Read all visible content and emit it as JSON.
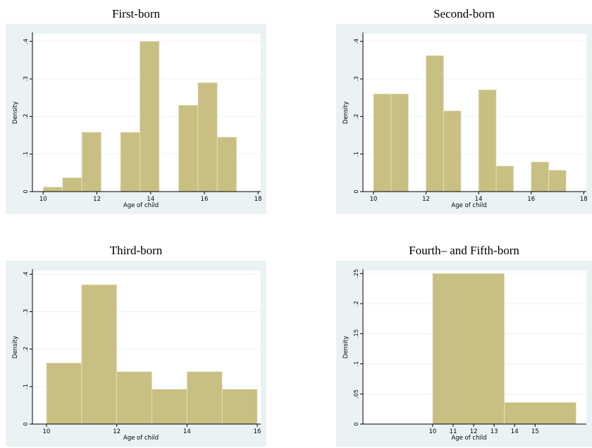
{
  "chart_data": [
    {
      "type": "bar",
      "title": "First-born",
      "xlabel": "Age of child",
      "ylabel": "Density",
      "xlim": [
        9.6,
        18.1
      ],
      "ylim": [
        0,
        0.42
      ],
      "xticks": [
        10,
        12,
        14,
        16,
        18
      ],
      "xtick_labels": [
        "10",
        "12",
        "14",
        "16",
        "18"
      ],
      "yticks": [
        0,
        0.1,
        0.2,
        0.3,
        0.4
      ],
      "ytick_labels": [
        "0",
        ".1",
        ".2",
        ".3",
        ".4"
      ],
      "bins": [
        {
          "x0": 10.0,
          "x1": 10.72,
          "value": 0.012
        },
        {
          "x0": 10.72,
          "x1": 11.44,
          "value": 0.037
        },
        {
          "x0": 11.44,
          "x1": 12.16,
          "value": 0.158
        },
        {
          "x0": 12.88,
          "x1": 13.6,
          "value": 0.158
        },
        {
          "x0": 13.6,
          "x1": 14.32,
          "value": 0.4
        },
        {
          "x0": 15.04,
          "x1": 15.76,
          "value": 0.23
        },
        {
          "x0": 15.76,
          "x1": 16.48,
          "value": 0.29
        },
        {
          "x0": 16.48,
          "x1": 17.2,
          "value": 0.145
        }
      ]
    },
    {
      "type": "bar",
      "title": "Second-born",
      "xlabel": "Age of child",
      "ylabel": "Density",
      "xlim": [
        9.6,
        18.1
      ],
      "ylim": [
        0,
        0.42
      ],
      "xticks": [
        10,
        12,
        14,
        16,
        18
      ],
      "xtick_labels": [
        "10",
        "12",
        "14",
        "16",
        "18"
      ],
      "yticks": [
        0,
        0.1,
        0.2,
        0.3,
        0.4
      ],
      "ytick_labels": [
        "0",
        ".1",
        ".2",
        ".3",
        ".4"
      ],
      "bins": [
        {
          "x0": 10.0,
          "x1": 10.67,
          "value": 0.26
        },
        {
          "x0": 10.67,
          "x1": 11.33,
          "value": 0.26
        },
        {
          "x0": 12.0,
          "x1": 12.67,
          "value": 0.362
        },
        {
          "x0": 12.67,
          "x1": 13.33,
          "value": 0.215
        },
        {
          "x0": 14.0,
          "x1": 14.67,
          "value": 0.271
        },
        {
          "x0": 14.67,
          "x1": 15.33,
          "value": 0.068
        },
        {
          "x0": 16.0,
          "x1": 16.67,
          "value": 0.079
        },
        {
          "x0": 16.67,
          "x1": 17.33,
          "value": 0.057
        }
      ]
    },
    {
      "type": "bar",
      "title": "Third-born",
      "xlabel": "Age of child",
      "ylabel": "Density",
      "xlim": [
        9.6,
        16.1
      ],
      "ylim": [
        0,
        0.41
      ],
      "xticks": [
        10,
        12,
        14,
        16
      ],
      "xtick_labels": [
        "10",
        "12",
        "14",
        "16"
      ],
      "yticks": [
        0,
        0.1,
        0.2,
        0.3,
        0.4
      ],
      "ytick_labels": [
        "0",
        ".1",
        ".2",
        ".3",
        ".4"
      ],
      "bins": [
        {
          "x0": 10,
          "x1": 11,
          "value": 0.163
        },
        {
          "x0": 11,
          "x1": 12,
          "value": 0.372
        },
        {
          "x0": 12,
          "x1": 13,
          "value": 0.14
        },
        {
          "x0": 13,
          "x1": 14,
          "value": 0.093
        },
        {
          "x0": 14,
          "x1": 15,
          "value": 0.14
        },
        {
          "x0": 15,
          "x1": 16,
          "value": 0.093
        }
      ]
    },
    {
      "type": "bar",
      "title": "Fourth– and Fifth-born",
      "xlabel": "Age of child",
      "ylabel": "Density",
      "xlim": [
        6.6,
        17.5
      ],
      "ylim": [
        0,
        0.255
      ],
      "xticks": [
        10,
        11,
        12,
        13,
        14,
        15
      ],
      "xtick_labels": [
        "10",
        "11",
        "12",
        "13",
        "14",
        "15"
      ],
      "yticks": [
        0,
        0.05,
        0.1,
        0.15,
        0.2,
        0.25
      ],
      "ytick_labels": [
        "0",
        ".05",
        ".1",
        ".15",
        ".2",
        ".25"
      ],
      "bins": [
        {
          "x0": 10,
          "x1": 13.5,
          "value": 0.25
        },
        {
          "x0": 13.5,
          "x1": 17,
          "value": 0.036
        }
      ]
    }
  ],
  "colors": {
    "bar_fill": "#c8bf82",
    "bar_stroke": "#e9e4c8",
    "plot_bg": "#ffffff",
    "outer_bg": "#eaf2f3",
    "axis": "#000000"
  }
}
